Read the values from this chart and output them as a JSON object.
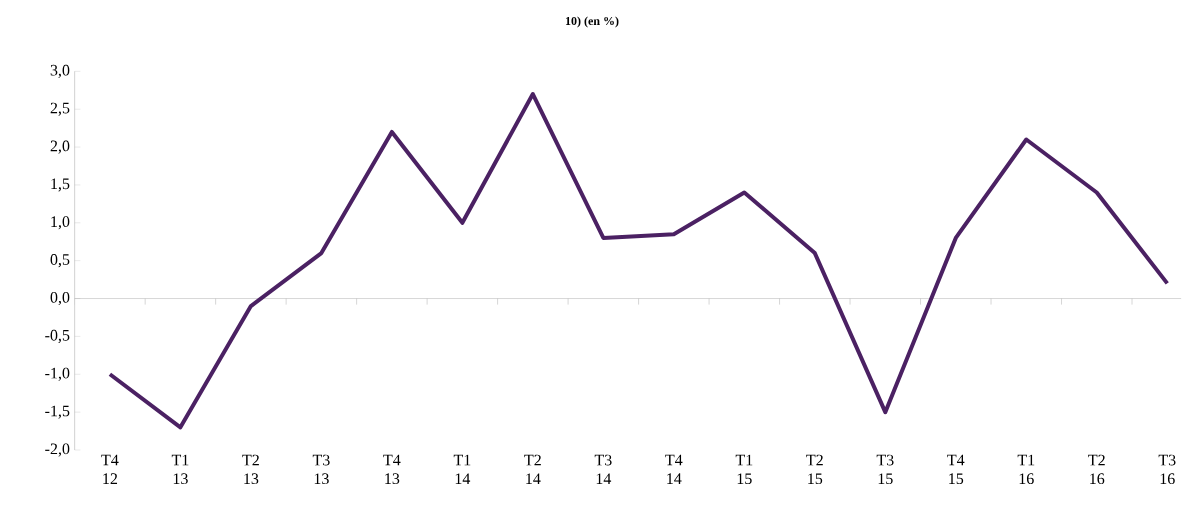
{
  "chart_data": {
    "type": "line",
    "title": "10) (en %)",
    "categories": [
      "T4 12",
      "T1 13",
      "T2 13",
      "T3 13",
      "T4 13",
      "T1 14",
      "T2 14",
      "T3 14",
      "T4 14",
      "T1 15",
      "T2 15",
      "T3 15",
      "T4 15",
      "T1 16",
      "T2 16",
      "T3 16"
    ],
    "values": [
      -1.0,
      -1.7,
      -0.1,
      0.6,
      2.2,
      1.0,
      2.7,
      0.8,
      0.85,
      1.4,
      0.6,
      -1.5,
      0.8,
      2.1,
      1.4,
      0.2
    ],
    "color": "#4b2163",
    "marker": "none",
    "line_style": "solid",
    "ylim": [
      -2,
      3
    ],
    "yticks": [
      {
        "value": -2,
        "label": "-2,0"
      },
      {
        "value": -1.5,
        "label": "-1,5"
      },
      {
        "value": -1,
        "label": "-1,0"
      },
      {
        "value": -0.5,
        "label": "-0,5"
      },
      {
        "value": 0,
        "label": "0,0"
      },
      {
        "value": 0.5,
        "label": "0,5"
      },
      {
        "value": 1,
        "label": "1,0"
      },
      {
        "value": 1.5,
        "label": "1,5"
      },
      {
        "value": 2,
        "label": "2,0"
      },
      {
        "value": 2.5,
        "label": "2,5"
      },
      {
        "value": 3,
        "label": "3,0"
      }
    ]
  }
}
